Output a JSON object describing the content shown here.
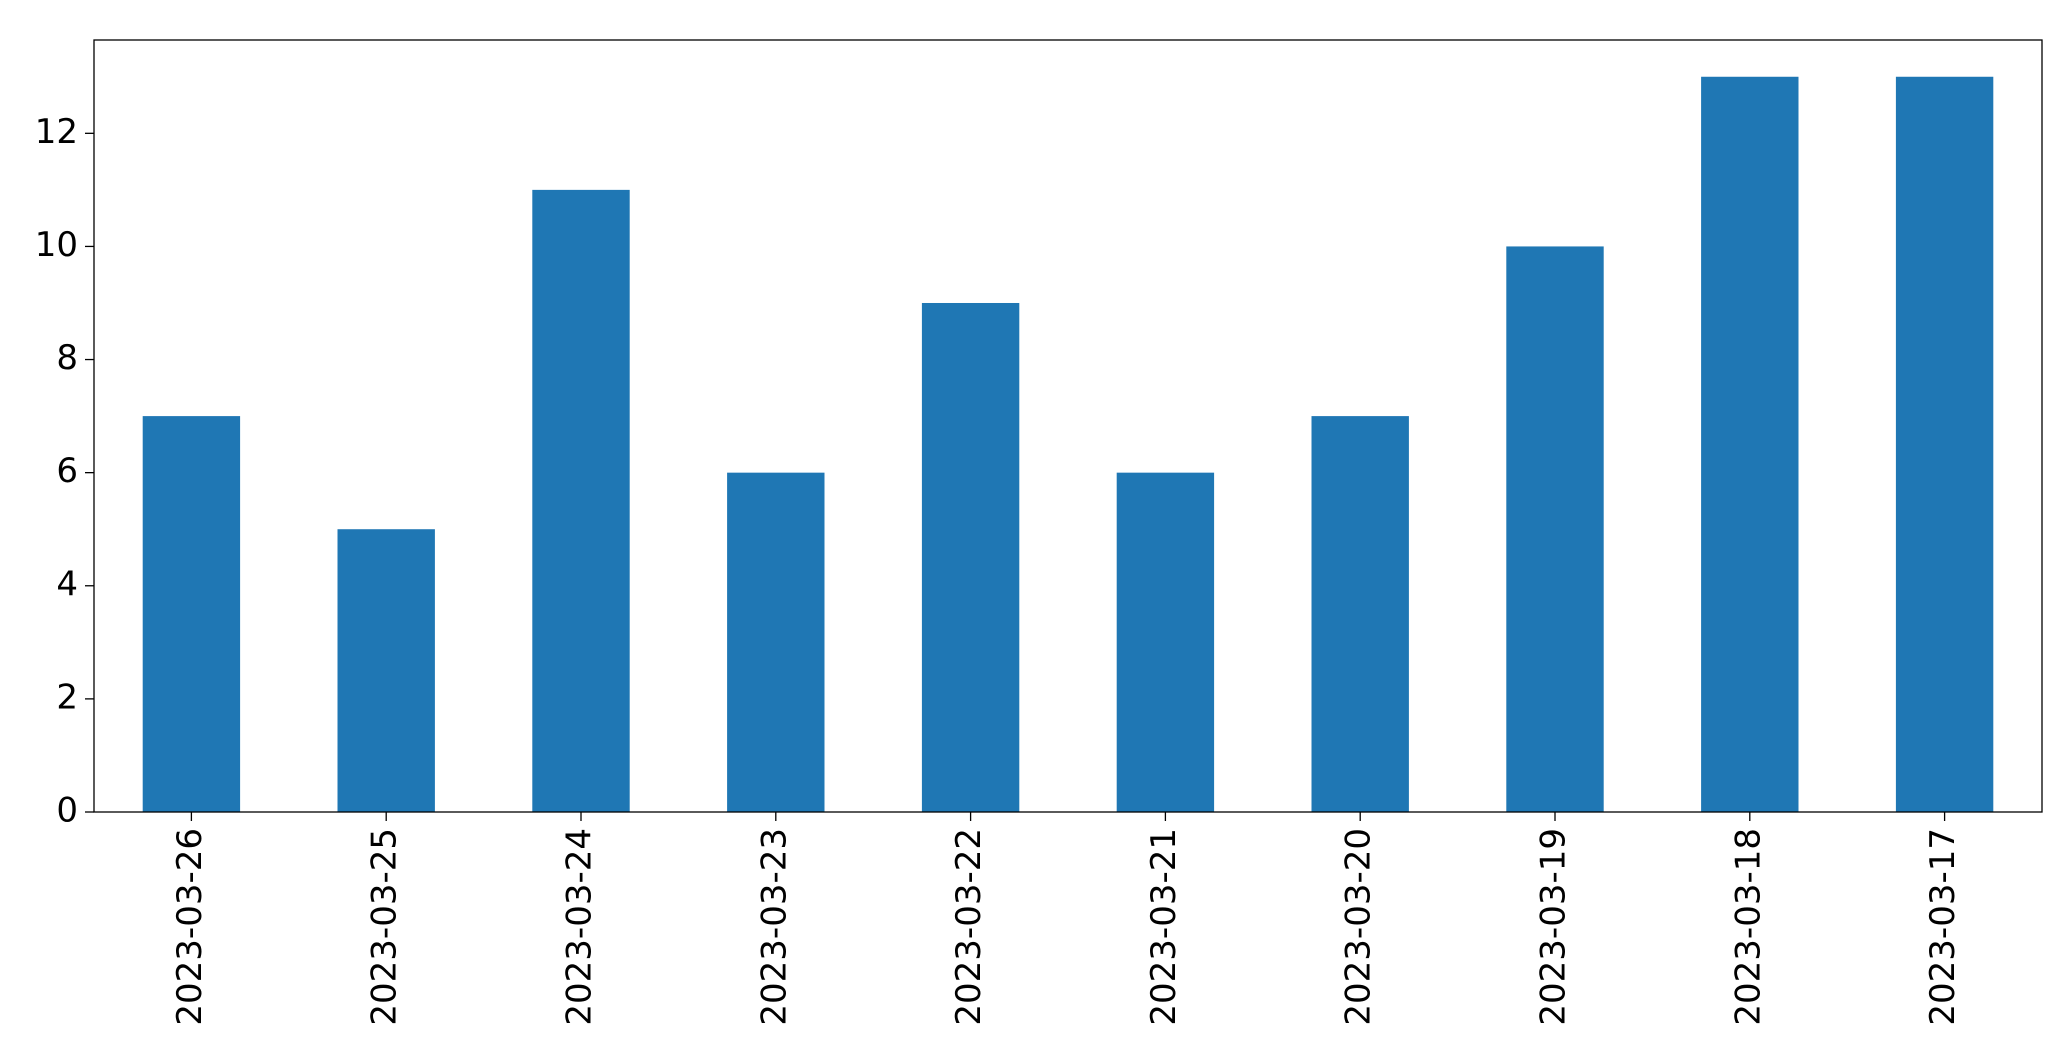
{
  "chart_data": {
    "type": "bar",
    "categories": [
      "2023-03-26",
      "2023-03-25",
      "2023-03-24",
      "2023-03-23",
      "2023-03-22",
      "2023-03-21",
      "2023-03-20",
      "2023-03-19",
      "2023-03-18",
      "2023-03-17"
    ],
    "values": [
      7,
      5,
      11,
      6,
      9,
      6,
      7,
      10,
      13,
      13
    ],
    "color": "#1f77b4",
    "ylim": [
      0,
      13.65
    ],
    "yticks": [
      0,
      2,
      4,
      6,
      8,
      10,
      12
    ],
    "grid": false
  }
}
